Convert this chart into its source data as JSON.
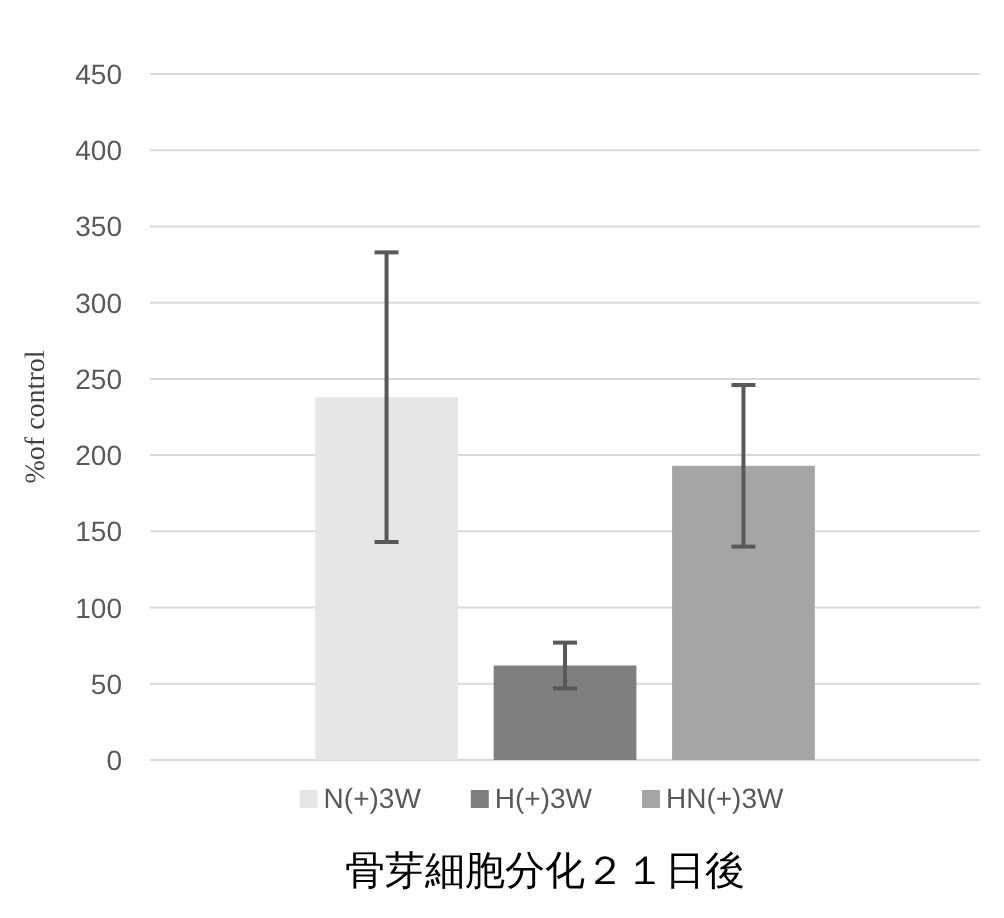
{
  "chart_data": {
    "type": "bar",
    "title": "骨芽細胞分化２１日後",
    "ylabel": "%of control",
    "categories": [
      null
    ],
    "series": [
      {
        "name": "N(+)3W",
        "color": "#e6e6e6",
        "values": [
          238
        ],
        "errors": [
          95
        ]
      },
      {
        "name": "H(+)3W",
        "color": "#7f7f7f",
        "values": [
          62
        ],
        "errors": [
          15
        ]
      },
      {
        "name": "HN(+)3W",
        "color": "#a5a5a5",
        "values": [
          193
        ],
        "errors": [
          53
        ]
      }
    ],
    "ylim": [
      0,
      450
    ],
    "yticks": [
      0,
      50,
      100,
      150,
      200,
      250,
      300,
      350,
      400,
      450
    ],
    "grid": "y",
    "legend": "bottom"
  }
}
